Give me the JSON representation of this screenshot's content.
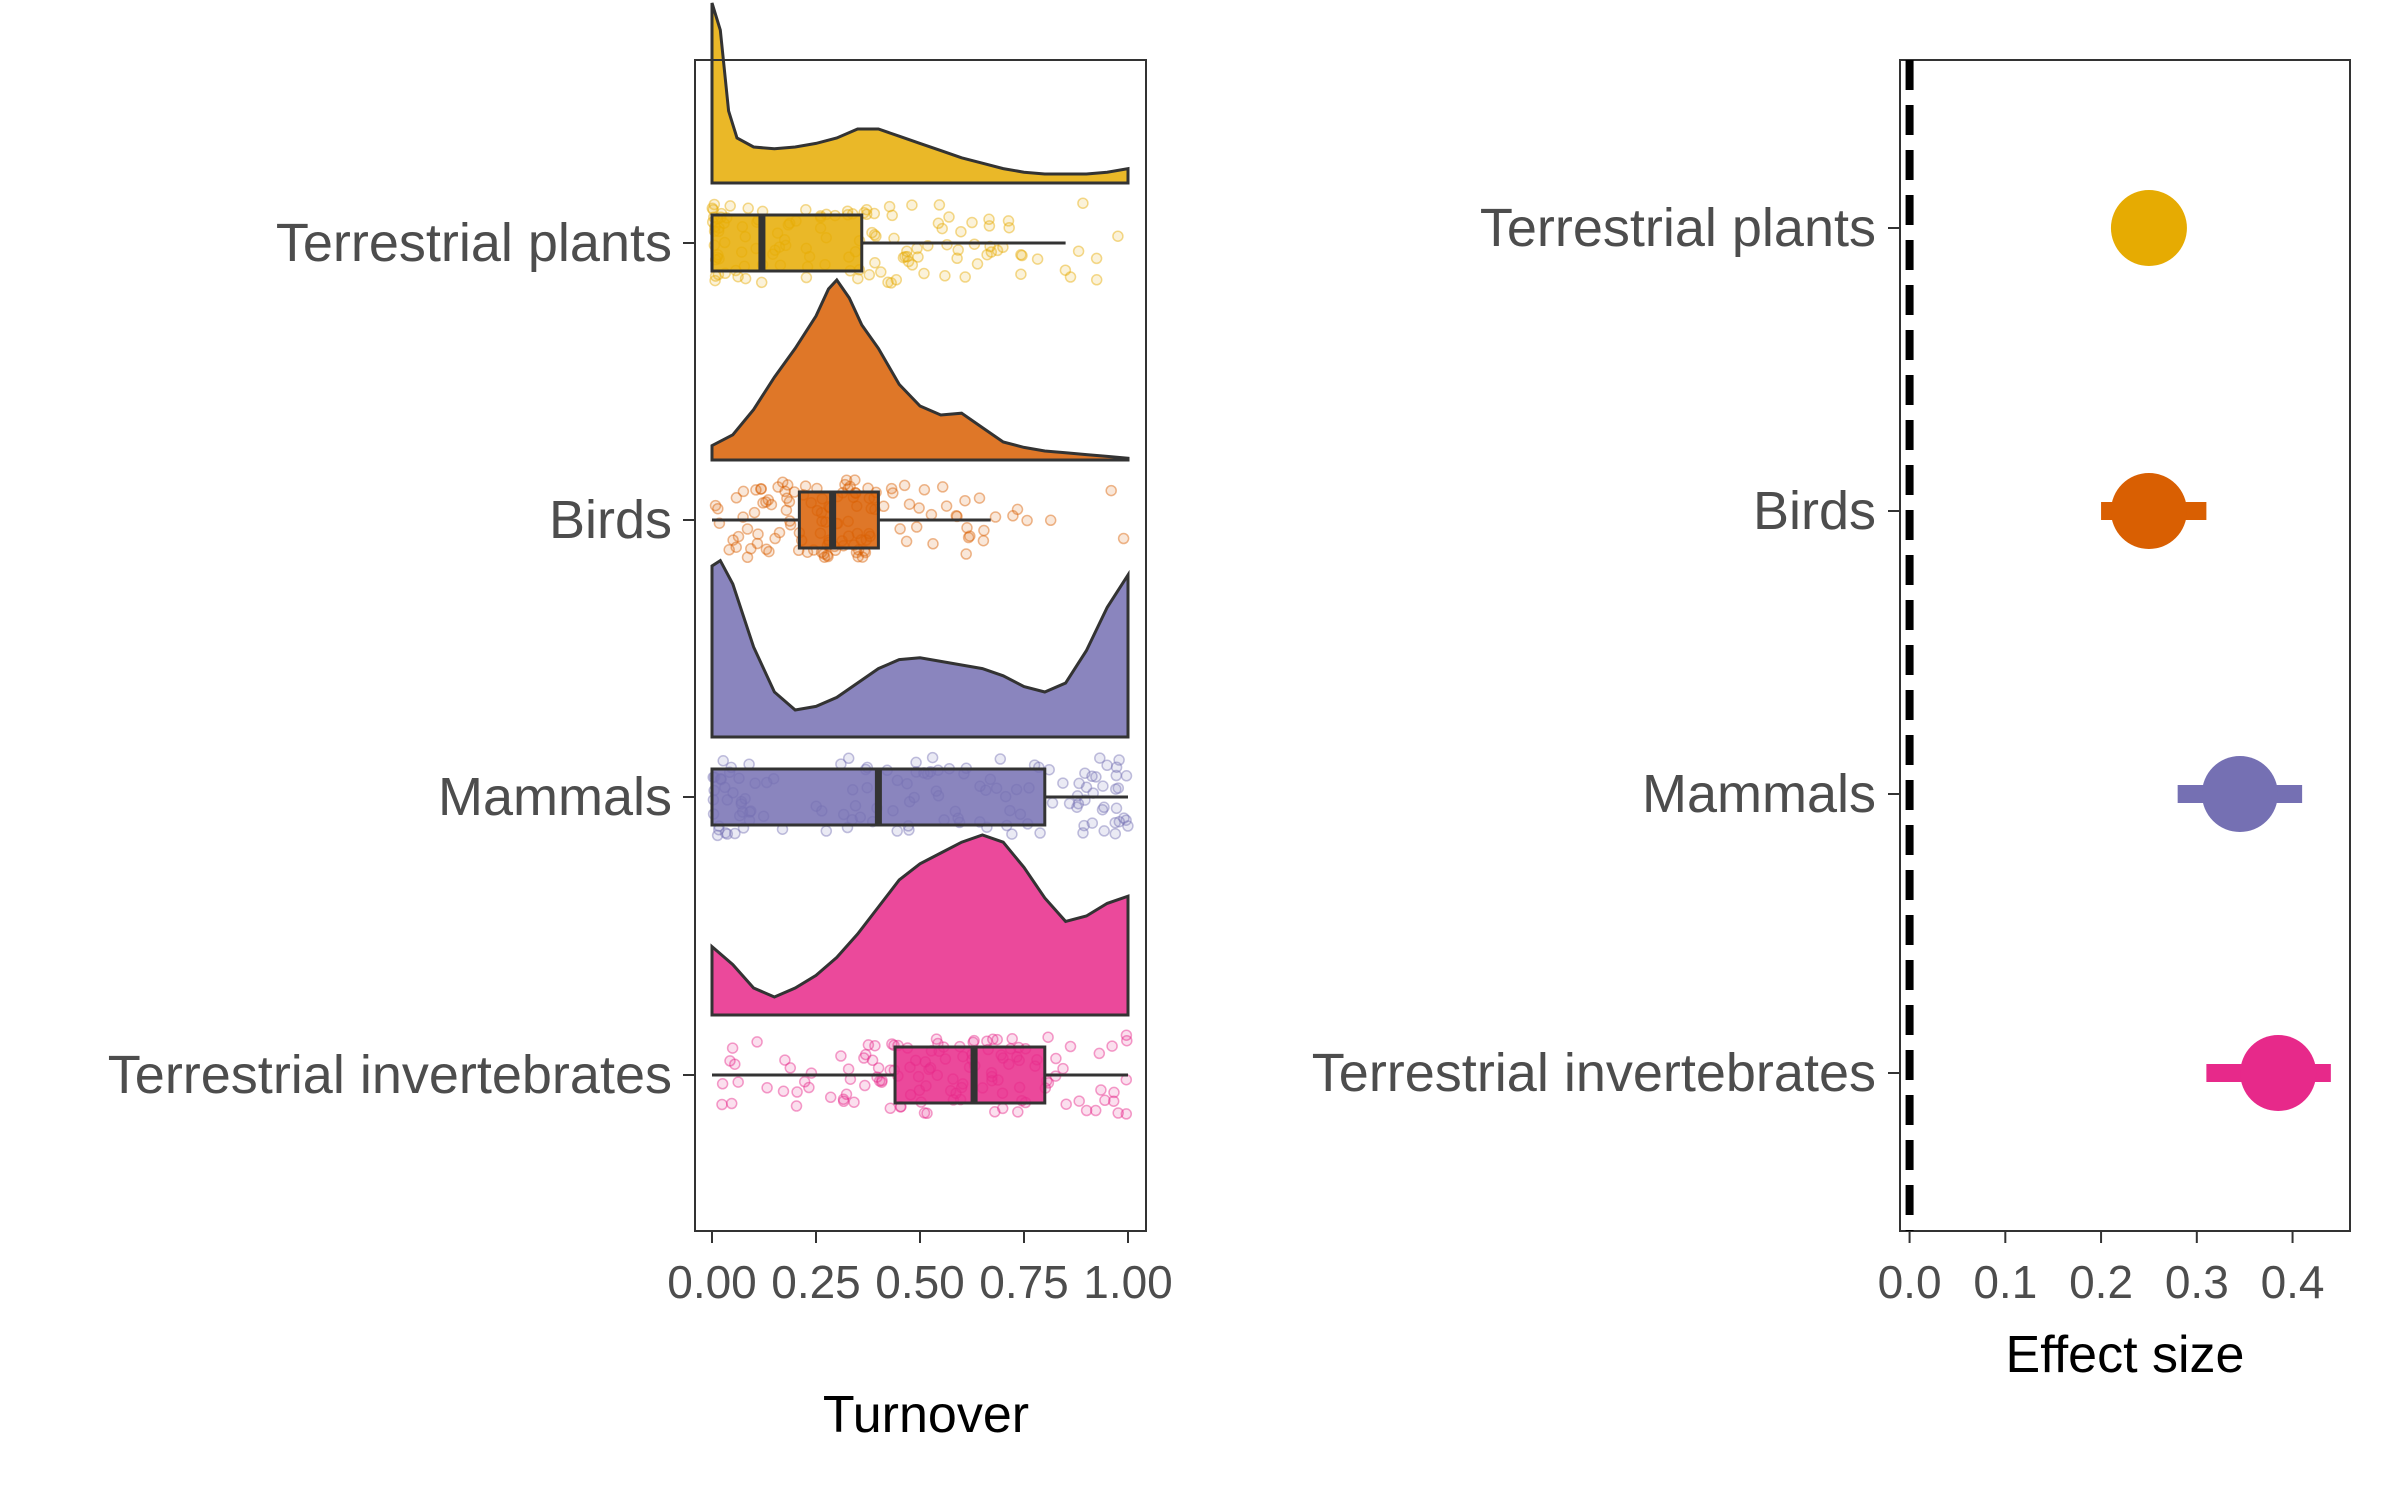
{
  "chart_data": [
    {
      "type": "raincloud",
      "xlabel": "Turnover",
      "ylabel": "",
      "xlim": [
        0,
        1
      ],
      "x_ticks": [
        "0.00",
        "0.25",
        "0.50",
        "0.75",
        "1.00"
      ],
      "grid": false,
      "series": [
        {
          "name": "Terrestrial plants",
          "color": "#E6AB02",
          "box": {
            "min": 0.0,
            "q1": 0.0,
            "median": 0.12,
            "q3": 0.36,
            "max": 0.85
          },
          "density": [
            [
              0.0,
              1.0
            ],
            [
              0.02,
              0.85
            ],
            [
              0.04,
              0.4
            ],
            [
              0.06,
              0.25
            ],
            [
              0.1,
              0.2
            ],
            [
              0.15,
              0.19
            ],
            [
              0.2,
              0.2
            ],
            [
              0.25,
              0.22
            ],
            [
              0.3,
              0.25
            ],
            [
              0.35,
              0.3
            ],
            [
              0.4,
              0.3
            ],
            [
              0.45,
              0.26
            ],
            [
              0.5,
              0.22
            ],
            [
              0.55,
              0.18
            ],
            [
              0.6,
              0.14
            ],
            [
              0.65,
              0.11
            ],
            [
              0.7,
              0.08
            ],
            [
              0.75,
              0.06
            ],
            [
              0.8,
              0.05
            ],
            [
              0.85,
              0.05
            ],
            [
              0.9,
              0.05
            ],
            [
              0.95,
              0.06
            ],
            [
              1.0,
              0.08
            ]
          ]
        },
        {
          "name": "Birds",
          "color": "#D95F02",
          "box": {
            "min": 0.0,
            "q1": 0.21,
            "median": 0.29,
            "q3": 0.4,
            "max": 0.67
          },
          "density": [
            [
              0.0,
              0.08
            ],
            [
              0.05,
              0.14
            ],
            [
              0.1,
              0.28
            ],
            [
              0.15,
              0.46
            ],
            [
              0.2,
              0.62
            ],
            [
              0.25,
              0.8
            ],
            [
              0.28,
              0.95
            ],
            [
              0.3,
              1.0
            ],
            [
              0.33,
              0.9
            ],
            [
              0.36,
              0.75
            ],
            [
              0.4,
              0.62
            ],
            [
              0.45,
              0.42
            ],
            [
              0.5,
              0.3
            ],
            [
              0.55,
              0.25
            ],
            [
              0.6,
              0.26
            ],
            [
              0.65,
              0.18
            ],
            [
              0.7,
              0.1
            ],
            [
              0.75,
              0.07
            ],
            [
              0.8,
              0.05
            ],
            [
              0.85,
              0.04
            ],
            [
              0.9,
              0.03
            ],
            [
              0.95,
              0.02
            ],
            [
              1.0,
              0.01
            ]
          ]
        },
        {
          "name": "Mammals",
          "color": "#7570B3",
          "box": {
            "min": 0.0,
            "q1": 0.0,
            "median": 0.4,
            "q3": 0.8,
            "max": 1.0
          },
          "density": [
            [
              0.0,
              0.95
            ],
            [
              0.02,
              0.98
            ],
            [
              0.05,
              0.85
            ],
            [
              0.1,
              0.5
            ],
            [
              0.15,
              0.25
            ],
            [
              0.2,
              0.15
            ],
            [
              0.25,
              0.17
            ],
            [
              0.3,
              0.22
            ],
            [
              0.35,
              0.3
            ],
            [
              0.4,
              0.38
            ],
            [
              0.45,
              0.43
            ],
            [
              0.5,
              0.44
            ],
            [
              0.55,
              0.42
            ],
            [
              0.6,
              0.4
            ],
            [
              0.65,
              0.38
            ],
            [
              0.7,
              0.34
            ],
            [
              0.75,
              0.28
            ],
            [
              0.8,
              0.25
            ],
            [
              0.85,
              0.3
            ],
            [
              0.9,
              0.48
            ],
            [
              0.95,
              0.72
            ],
            [
              1.0,
              0.9
            ]
          ]
        },
        {
          "name": "Terrestrial invertebrates",
          "color": "#E7298A",
          "box": {
            "min": 0.0,
            "q1": 0.44,
            "median": 0.63,
            "q3": 0.8,
            "max": 1.0
          },
          "density": [
            [
              0.0,
              0.38
            ],
            [
              0.05,
              0.28
            ],
            [
              0.1,
              0.15
            ],
            [
              0.15,
              0.1
            ],
            [
              0.2,
              0.15
            ],
            [
              0.25,
              0.22
            ],
            [
              0.3,
              0.32
            ],
            [
              0.35,
              0.45
            ],
            [
              0.4,
              0.6
            ],
            [
              0.45,
              0.75
            ],
            [
              0.5,
              0.84
            ],
            [
              0.55,
              0.9
            ],
            [
              0.6,
              0.96
            ],
            [
              0.65,
              1.0
            ],
            [
              0.7,
              0.96
            ],
            [
              0.75,
              0.82
            ],
            [
              0.8,
              0.65
            ],
            [
              0.85,
              0.52
            ],
            [
              0.9,
              0.55
            ],
            [
              0.95,
              0.62
            ],
            [
              1.0,
              0.66
            ]
          ]
        }
      ]
    },
    {
      "type": "forest",
      "xlabel": "Effect size",
      "ylabel": "",
      "xlim": [
        -0.01,
        0.46
      ],
      "x_ticks": [
        "0.0",
        "0.1",
        "0.2",
        "0.3",
        "0.4"
      ],
      "reference_line": 0,
      "grid": false,
      "series": [
        {
          "name": "Terrestrial plants",
          "color": "#E6AB02",
          "estimate": 0.25,
          "lower": 0.25,
          "upper": 0.25
        },
        {
          "name": "Birds",
          "color": "#D95F02",
          "estimate": 0.25,
          "lower": 0.2,
          "upper": 0.31
        },
        {
          "name": "Mammals",
          "color": "#7570B3",
          "estimate": 0.345,
          "lower": 0.28,
          "upper": 0.41
        },
        {
          "name": "Terrestrial invertebrates",
          "color": "#E7298A",
          "estimate": 0.385,
          "lower": 0.31,
          "upper": 0.44
        }
      ]
    }
  ]
}
